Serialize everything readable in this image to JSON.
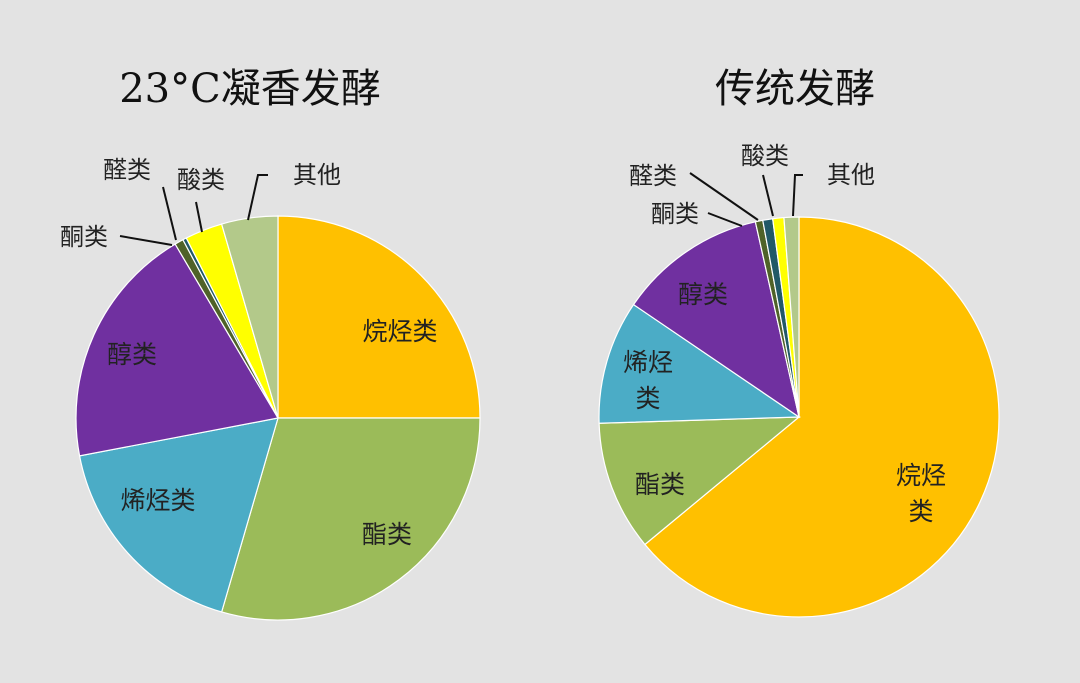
{
  "colors": {
    "alkane": "#ffc000",
    "ester": "#9bbb59",
    "alkene": "#4bacc6",
    "alcohol": "#7030a0",
    "ketone": "#4f6228",
    "aldehyde": "#215967",
    "acid": "#ffff00",
    "other": "#b3c98a",
    "background": "#e3e3e3"
  },
  "chart_data": [
    {
      "type": "pie",
      "title": "23°C凝香发酵",
      "slices": [
        {
          "key": "alkane",
          "label": "烷烃类",
          "value": 25.0
        },
        {
          "key": "ester",
          "label": "酯类",
          "value": 29.5
        },
        {
          "key": "alkene",
          "label": "烯烃类",
          "value": 17.5
        },
        {
          "key": "alcohol",
          "label": "醇类",
          "value": 19.5
        },
        {
          "key": "ketone",
          "label": "酮类",
          "value": 0.7
        },
        {
          "key": "aldehyde",
          "label": "醛类",
          "value": 0.3
        },
        {
          "key": "acid",
          "label": "酸类",
          "value": 3.0
        },
        {
          "key": "other",
          "label": "其他",
          "value": 4.5
        }
      ]
    },
    {
      "type": "pie",
      "title": "传统发酵",
      "slices": [
        {
          "key": "alkane",
          "label": "烷烃类",
          "value": 64.0
        },
        {
          "key": "ester",
          "label": "酯类",
          "value": 10.5
        },
        {
          "key": "alkene",
          "label": "烯烃类",
          "value": 10.0
        },
        {
          "key": "alcohol",
          "label": "醇类",
          "value": 12.0
        },
        {
          "key": "ketone",
          "label": "酮类",
          "value": 0.6
        },
        {
          "key": "aldehyde",
          "label": "醛类",
          "value": 0.8
        },
        {
          "key": "acid",
          "label": "酸类",
          "value": 0.9
        },
        {
          "key": "other",
          "label": "其他",
          "value": 1.2
        }
      ]
    }
  ]
}
